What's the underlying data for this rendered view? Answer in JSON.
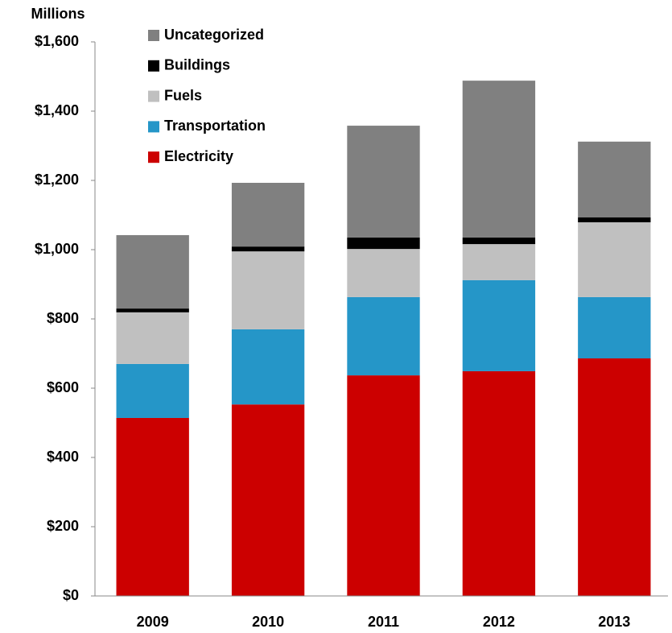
{
  "chart_data": {
    "type": "stacked-bar",
    "y_label": "Millions",
    "categories": [
      "2009",
      "2010",
      "2011",
      "2012",
      "2013"
    ],
    "series": [
      {
        "name": "Electricity",
        "color": "#cc0000",
        "values": [
          514,
          553,
          637,
          649,
          686
        ]
      },
      {
        "name": "Transportation",
        "color": "#2596c8",
        "values": [
          156,
          217,
          226,
          263,
          177
        ]
      },
      {
        "name": "Fuels",
        "color": "#c0c0c0",
        "values": [
          149,
          225,
          139,
          104,
          216
        ]
      },
      {
        "name": "Buildings",
        "color": "#000000",
        "values": [
          11,
          14,
          33,
          19,
          14
        ]
      },
      {
        "name": "Uncategorized",
        "color": "#808080",
        "values": [
          212,
          184,
          323,
          453,
          219
        ]
      }
    ],
    "ylim": [
      0,
      1600
    ],
    "yticks": [
      {
        "value": 0,
        "label": "$0"
      },
      {
        "value": 200,
        "label": "$200"
      },
      {
        "value": 400,
        "label": "$400"
      },
      {
        "value": 600,
        "label": "$600"
      },
      {
        "value": 800,
        "label": "$800"
      },
      {
        "value": 1000,
        "label": "$1,000"
      },
      {
        "value": 1200,
        "label": "$1,200"
      },
      {
        "value": 1400,
        "label": "$1,400"
      },
      {
        "value": 1600,
        "label": "$1,600"
      }
    ],
    "grid": false,
    "legend": "top-left"
  }
}
